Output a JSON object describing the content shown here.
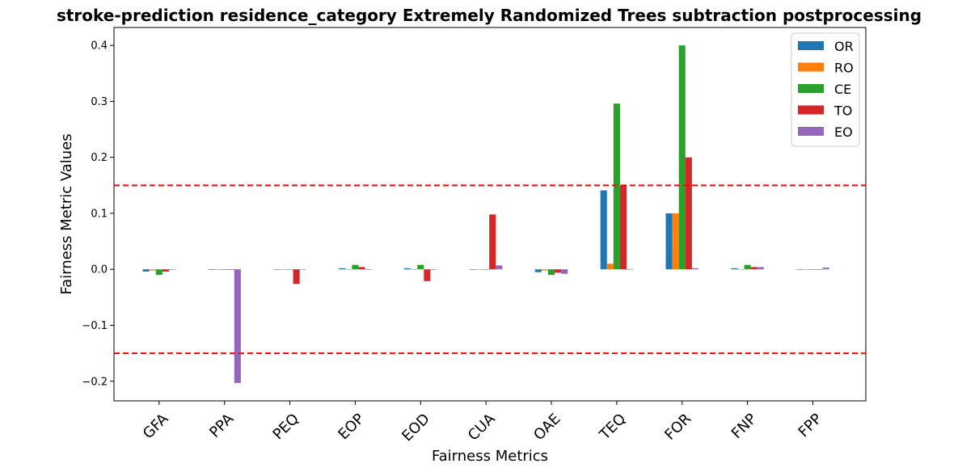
{
  "chart_data": {
    "type": "bar",
    "title": "stroke-prediction residence_category Extremely Randomized Trees subtraction postprocessing",
    "xlabel": "Fairness Metrics",
    "ylabel": "Fairness Metric Values",
    "categories": [
      "GFA",
      "PPA",
      "PEQ",
      "EOP",
      "EOD",
      "CUA",
      "OAE",
      "TEQ",
      "FOR",
      "FNP",
      "FPP"
    ],
    "ylim": [
      -0.235,
      0.432
    ],
    "yticks": [
      -0.2,
      -0.1,
      0.0,
      0.1,
      0.2,
      0.3,
      0.4
    ],
    "ytick_labels": [
      "−0.2",
      "−0.1",
      "0.0",
      "0.1",
      "0.2",
      "0.3",
      "0.4"
    ],
    "reference_lines": [
      0.15,
      -0.15
    ],
    "reference_line_color": "#ff0000",
    "legend_position": "top-right",
    "grid": false,
    "series": [
      {
        "name": "OR",
        "color": "#1f77b4",
        "values": [
          -0.004,
          -0.001,
          0.0,
          0.002,
          0.002,
          0.0,
          -0.005,
          0.141,
          0.1,
          0.002,
          0.0
        ]
      },
      {
        "name": "RO",
        "color": "#ff7f0e",
        "values": [
          -0.002,
          -0.001,
          0.0,
          0.0,
          0.0,
          0.0,
          -0.002,
          0.01,
          0.1,
          0.0,
          0.0
        ]
      },
      {
        "name": "CE",
        "color": "#2ca02c",
        "values": [
          -0.01,
          -0.001,
          0.0,
          0.008,
          0.008,
          0.0,
          -0.01,
          0.296,
          0.4,
          0.008,
          0.0
        ]
      },
      {
        "name": "TO",
        "color": "#d62728",
        "values": [
          -0.004,
          -0.001,
          -0.026,
          0.004,
          -0.021,
          0.098,
          -0.006,
          0.15,
          0.2,
          0.004,
          0.0
        ]
      },
      {
        "name": "EO",
        "color": "#9467bd",
        "values": [
          -0.001,
          -0.203,
          0.0,
          0.0,
          0.0,
          0.007,
          -0.008,
          0.0,
          0.002,
          0.004,
          0.003
        ]
      }
    ]
  }
}
